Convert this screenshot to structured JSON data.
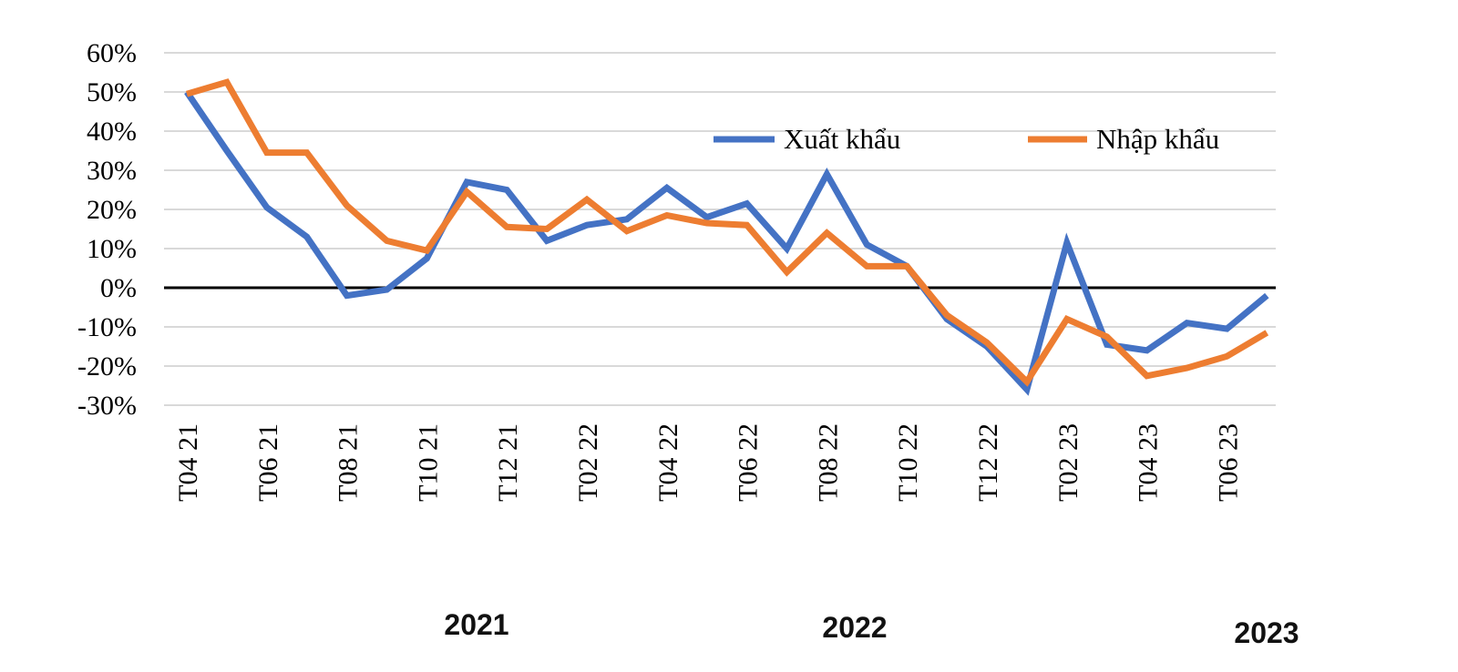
{
  "chart_data": {
    "type": "line",
    "title": "",
    "xlabel": "",
    "ylabel": "",
    "ylim": [
      -30,
      60
    ],
    "yticks": [
      "60%",
      "50%",
      "40%",
      "30%",
      "20%",
      "10%",
      "0%",
      "-10%",
      "-20%",
      "-30%"
    ],
    "x": [
      "T04 21",
      "T05 21",
      "T06 21",
      "T07 21",
      "T08 21",
      "T09 21",
      "T10 21",
      "T11 21",
      "T12 21",
      "T01 22",
      "T02 22",
      "T03 22",
      "T04 22",
      "T05 22",
      "T06 22",
      "T07 22",
      "T08 22",
      "T09 22",
      "T10 22",
      "T11 22",
      "T12 22",
      "T01 23",
      "T02 23",
      "T03 23",
      "T04 23",
      "T05 23",
      "T06 23",
      "T07 23"
    ],
    "x_tick_labels": [
      "T04 21",
      "T06 21",
      "T08 21",
      "T10 21",
      "T12 21",
      "T02 22",
      "T04 22",
      "T06 22",
      "T08 22",
      "T10 22",
      "T12 22",
      "T02 23",
      "T04 23",
      "T06 23"
    ],
    "year_labels": [
      "2021",
      "2022",
      "2023"
    ],
    "grid": true,
    "legend_position": "upper-right",
    "series": [
      {
        "name": "Xuất khẩu",
        "color": "#4472C4",
        "values": [
          50,
          35,
          20.5,
          13,
          -2,
          -0.5,
          7.5,
          27,
          25,
          12,
          16,
          17.5,
          25.5,
          18,
          21.5,
          10,
          29,
          11,
          5.5,
          -8,
          -15,
          -26,
          11.5,
          -14.5,
          -16,
          -9,
          -10.5,
          -2
        ]
      },
      {
        "name": "Nhập khẩu",
        "color": "#ED7D31",
        "values": [
          49.5,
          52.5,
          34.5,
          34.5,
          21,
          12,
          9.5,
          24.5,
          15.5,
          15,
          22.5,
          14.5,
          18.5,
          16.5,
          16,
          4,
          14,
          5.5,
          5.5,
          -7,
          -14,
          -24,
          -8,
          -12.5,
          -22.5,
          -20.5,
          -17.5,
          -11.5
        ]
      }
    ]
  }
}
